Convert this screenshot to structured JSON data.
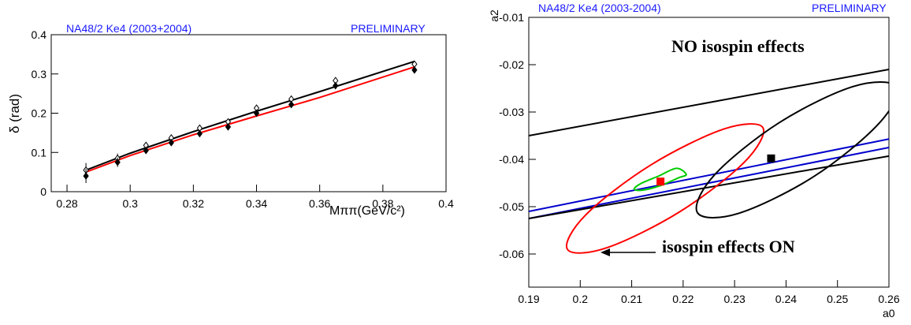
{
  "chart_data": [
    {
      "type": "line",
      "title": "NA48/2 Ke4 (2003+2004)",
      "tag": "PRELIMINARY",
      "xlabel": "Mππ(GeV/c²)",
      "ylabel": "δ (rad)",
      "xlim": [
        0.275,
        0.4
      ],
      "ylim": [
        0,
        0.4
      ],
      "xticks": [
        0.28,
        0.3,
        0.32,
        0.34,
        0.36,
        0.38,
        0.4
      ],
      "yticks": [
        0,
        0.1,
        0.2,
        0.3,
        0.4
      ],
      "series": [
        {
          "color": "#000000",
          "marker": "none",
          "x": [
            0.286,
            0.3,
            0.32,
            0.34,
            0.36,
            0.39
          ],
          "values": [
            0.055,
            0.098,
            0.153,
            0.205,
            0.255,
            0.332
          ]
        },
        {
          "color": "#ff0000",
          "marker": "none",
          "x": [
            0.286,
            0.3,
            0.32,
            0.34,
            0.36,
            0.39
          ],
          "values": [
            0.05,
            0.092,
            0.145,
            0.193,
            0.24,
            0.318
          ]
        },
        {
          "color": "#000000",
          "marker": "open-diamond",
          "x": [
            0.286,
            0.296,
            0.305,
            0.313,
            0.322,
            0.331,
            0.34,
            0.351,
            0.365,
            0.39
          ],
          "values": [
            0.055,
            0.085,
            0.118,
            0.137,
            0.162,
            0.178,
            0.213,
            0.236,
            0.283,
            0.325
          ],
          "errors": [
            0.018,
            0.012,
            0.008,
            0.008,
            0.008,
            0.008,
            0.008,
            0.008,
            0.008,
            0.006
          ]
        },
        {
          "color": "#000000",
          "marker": "filled-diamond",
          "x": [
            0.286,
            0.296,
            0.305,
            0.313,
            0.322,
            0.331,
            0.34,
            0.351,
            0.365,
            0.39
          ],
          "values": [
            0.04,
            0.075,
            0.105,
            0.125,
            0.148,
            0.165,
            0.2,
            0.222,
            0.27,
            0.31
          ],
          "errors": [
            0.018,
            0.012,
            0.008,
            0.008,
            0.008,
            0.008,
            0.008,
            0.008,
            0.008,
            0.006
          ]
        }
      ]
    },
    {
      "type": "line",
      "title": "NA48/2 Ke4 (2003-2004)",
      "tag": "PRELIMINARY",
      "xlabel": "a0",
      "ylabel": "a2",
      "xlim": [
        0.19,
        0.26
      ],
      "ylim": [
        -0.067,
        -0.01
      ],
      "xticks": [
        0.19,
        0.2,
        0.21,
        0.22,
        0.23,
        0.24,
        0.25,
        0.26
      ],
      "yticks": [
        -0.06,
        -0.05,
        -0.04,
        -0.03,
        -0.02,
        -0.01
      ],
      "annotations": [
        "NO isospin effects",
        "isospin effects ON"
      ],
      "series": [
        {
          "color": "#000000",
          "marker": "none",
          "x": [
            0.19,
            0.26
          ],
          "values": [
            -0.035,
            -0.021
          ]
        },
        {
          "color": "#0000cc",
          "marker": "none",
          "x": [
            0.19,
            0.26
          ],
          "values": [
            -0.051,
            -0.0357
          ]
        },
        {
          "color": "#0000cc",
          "marker": "none",
          "x": [
            0.19,
            0.26
          ],
          "values": [
            -0.0525,
            -0.0375
          ]
        },
        {
          "color": "#000000",
          "marker": "none",
          "x": [
            0.19,
            0.26
          ],
          "values": [
            -0.0525,
            -0.0393
          ]
        },
        {
          "color": "#ff0000",
          "marker": "closed",
          "x": [
            0.2355,
            0.2319,
            0.2193,
            0.2051,
            0.1975,
            0.2011,
            0.2137,
            0.2279
          ],
          "values": [
            -0.0333,
            -0.0406,
            -0.0511,
            -0.0587,
            -0.059,
            -0.0517,
            -0.0412,
            -0.0336
          ]
        },
        {
          "color": "#000000",
          "marker": "closed",
          "x": [
            0.2615,
            0.2579,
            0.2453,
            0.2308,
            0.2228,
            0.226,
            0.2386,
            0.2531
          ],
          "values": [
            -0.0247,
            -0.0326,
            -0.0437,
            -0.0514,
            -0.0513,
            -0.0434,
            -0.0323,
            -0.0246
          ]
        },
        {
          "color": "#00cc00",
          "marker": "closed",
          "x": [
            0.2206,
            0.2191,
            0.2157,
            0.2122,
            0.2105,
            0.2118,
            0.2153,
            0.2187
          ],
          "values": [
            -0.0432,
            -0.0439,
            -0.0455,
            -0.0465,
            -0.0463,
            -0.0451,
            -0.0435,
            -0.0419
          ]
        },
        {
          "color": "#ff0000",
          "marker": "square",
          "x": [
            0.2156
          ],
          "values": [
            -0.0447
          ]
        },
        {
          "color": "#000000",
          "marker": "square",
          "x": [
            0.2371
          ],
          "values": [
            -0.0398
          ]
        }
      ]
    }
  ]
}
